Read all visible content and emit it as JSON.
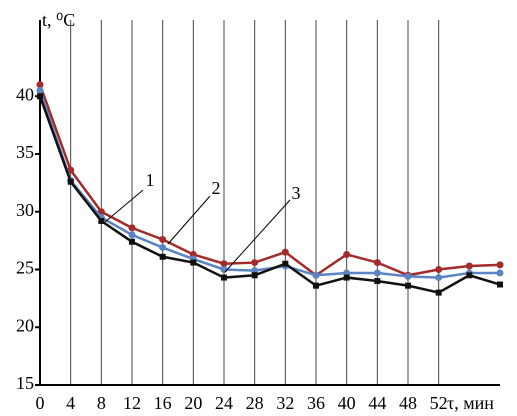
{
  "chart_data": {
    "type": "line",
    "y_label": "t, ⁰C",
    "x_label": "τ, мин",
    "x": [
      0,
      4,
      8,
      12,
      16,
      20,
      24,
      28,
      32,
      36,
      40,
      44,
      48,
      52,
      56,
      60
    ],
    "series": [
      {
        "name": "1",
        "color": "#a52a2a",
        "values": [
          41,
          33.6,
          30,
          28.6,
          27.6,
          26.3,
          25.5,
          25.6,
          26.5,
          24.5,
          26.3,
          25.6,
          24.5,
          25,
          25.3,
          25.4
        ]
      },
      {
        "name": "2",
        "color": "#5b84c4",
        "values": [
          40.5,
          32.7,
          29.5,
          28,
          26.9,
          25.9,
          25,
          24.9,
          25.3,
          24.5,
          24.7,
          24.7,
          24.4,
          24.3,
          24.7,
          24.7
        ]
      },
      {
        "name": "3",
        "color": "#111111",
        "values": [
          40,
          32.6,
          29.2,
          27.4,
          26.1,
          25.6,
          24.3,
          24.5,
          25.5,
          23.6,
          24.3,
          24,
          23.6,
          23,
          24.5,
          23.7
        ]
      }
    ],
    "xlim": [
      0,
      60
    ],
    "xticks": [
      0,
      4,
      8,
      12,
      16,
      20,
      24,
      28,
      32,
      36,
      40,
      44,
      48,
      52
    ],
    "ylim": [
      15,
      46.6
    ],
    "yticks": [
      15,
      20,
      25,
      30,
      35,
      40
    ],
    "grid": "x"
  }
}
